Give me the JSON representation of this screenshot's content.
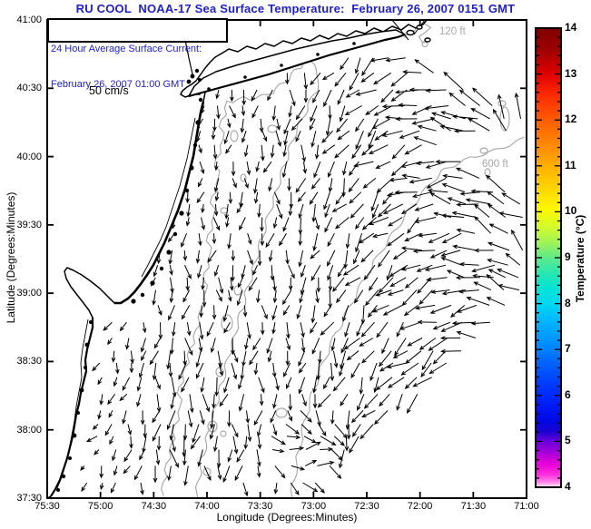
{
  "title": {
    "text": "RU COOL  NOAA-17 Sea Surface Temperature:  February 26, 2007 0151 GMT",
    "color": "#2121c8"
  },
  "overlay_box": {
    "line1": "24 Hour Average Surface Current:",
    "line2": "February 26, 2007 01:00 GMT",
    "color": "#2121c8"
  },
  "scale_label": "50 cm/s",
  "depth_labels": {
    "shallow": "120 ft",
    "deep": "600 ft",
    "color": "#a8a8a8"
  },
  "axes": {
    "x": {
      "label": "Longitude (Degrees:Minutes)",
      "ticks": [
        "75:30",
        "75:00",
        "74:30",
        "74:00",
        "73:30",
        "73:00",
        "72:30",
        "72:00",
        "71:30",
        "71:00"
      ]
    },
    "y": {
      "label": "Latitude (Degrees:Minutes)",
      "ticks": [
        "41:00",
        "40:30",
        "40:00",
        "39:30",
        "39:00",
        "38:30",
        "38:00",
        "37:30"
      ]
    }
  },
  "colorbar": {
    "label": "Temperature (°C)",
    "tick_labels": [
      "14",
      "13",
      "12",
      "11",
      "10",
      "9",
      "8",
      "7",
      "6",
      "5",
      "4"
    ],
    "range": {
      "min": 4,
      "max": 14
    },
    "minor_ticks_per_unit": 5,
    "stops": [
      [
        0.0,
        "#800000"
      ],
      [
        0.045,
        "#9c0000"
      ],
      [
        0.1,
        "#e00000"
      ],
      [
        0.145,
        "#ff2a00"
      ],
      [
        0.2,
        "#ff5c00"
      ],
      [
        0.25,
        "#ff8600"
      ],
      [
        0.3,
        "#ffae00"
      ],
      [
        0.35,
        "#ffd600"
      ],
      [
        0.395,
        "#fdf800"
      ],
      [
        0.43,
        "#d7fc2a"
      ],
      [
        0.465,
        "#a4f455"
      ],
      [
        0.5,
        "#5fe98a"
      ],
      [
        0.535,
        "#27e7b2"
      ],
      [
        0.57,
        "#02e2da"
      ],
      [
        0.6,
        "#00d8f2"
      ],
      [
        0.645,
        "#00b0ff"
      ],
      [
        0.69,
        "#008cff"
      ],
      [
        0.73,
        "#0062ff"
      ],
      [
        0.775,
        "#003cff"
      ],
      [
        0.82,
        "#001cfa"
      ],
      [
        0.855,
        "#0008e4"
      ],
      [
        0.878,
        "#1a02d2"
      ],
      [
        0.9,
        "#6a00d8"
      ],
      [
        0.925,
        "#a800da"
      ],
      [
        0.95,
        "#e800d8"
      ],
      [
        0.972,
        "#ff2ede"
      ],
      [
        0.988,
        "#ff7ce8"
      ],
      [
        0.997,
        "#ffd2f2"
      ],
      [
        1.0,
        "#ffffff"
      ]
    ]
  },
  "colors": {
    "arrow": "#000000",
    "land_outline": "#000000",
    "contour_gray": "#a8a8a8",
    "frame": "#000000"
  },
  "current_field": {
    "grid_step": 16,
    "base_angle_deg": 95,
    "min_arrow_len": 6,
    "head_len": 4.6,
    "description_visible": "24 Hour Average Surface Current vectors, reference scale 50 cm/s"
  }
}
